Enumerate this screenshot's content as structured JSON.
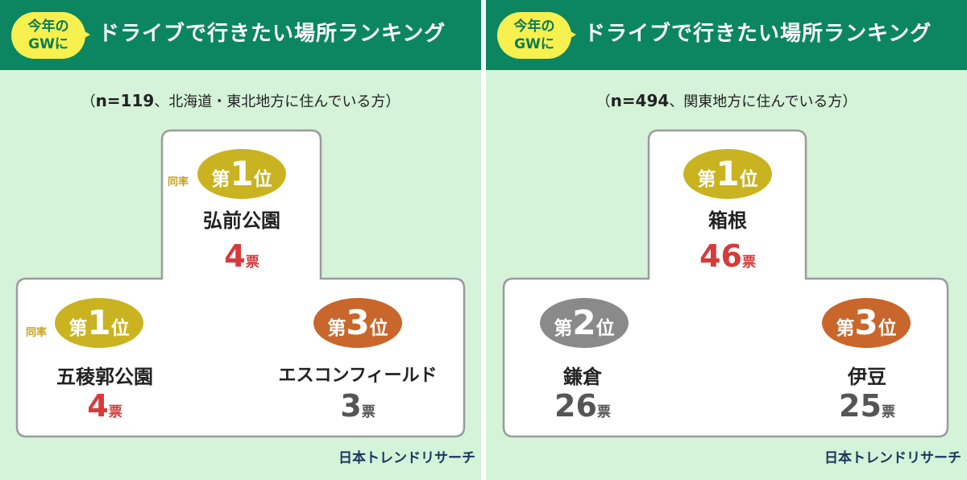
{
  "colors": {
    "header": "#0b8660",
    "background": "#d4f3d8",
    "bubble": "#f7f04e",
    "gold": "#c9b320",
    "silver": "#8a8a8a",
    "bronze": "#c8662b",
    "vote_highlight": "#d63b3b"
  },
  "panels": [
    {
      "bubble_line1": "今年の",
      "bubble_line2": "GWに",
      "title": "ドライブで行きたい場所ランキング",
      "note_open": "（",
      "note_n": "n=119",
      "note_rest": "、北海道・東北地方に住んでいる方）",
      "first_top": {
        "tie": "同率",
        "rank_pre": "第",
        "rank_num": "1",
        "rank_post": "位",
        "place": "弘前公園",
        "votes": "4",
        "unit": "票"
      },
      "left": {
        "tie": "同率",
        "rank_pre": "第",
        "rank_num": "1",
        "rank_post": "位",
        "place": "五稜郭公園",
        "votes": "4",
        "unit": "票"
      },
      "right": {
        "rank_pre": "第",
        "rank_num": "3",
        "rank_post": "位",
        "place": "エスコンフィールド",
        "votes": "3",
        "unit": "票"
      },
      "credit": "日本トレンドリサーチ"
    },
    {
      "bubble_line1": "今年の",
      "bubble_line2": "GWに",
      "title": "ドライブで行きたい場所ランキング",
      "note_open": "（",
      "note_n": "n=494",
      "note_rest": "、関東地方に住んでいる方）",
      "first_top": {
        "rank_pre": "第",
        "rank_num": "1",
        "rank_post": "位",
        "place": "箱根",
        "votes": "46",
        "unit": "票"
      },
      "left": {
        "rank_pre": "第",
        "rank_num": "2",
        "rank_post": "位",
        "place": "鎌倉",
        "votes": "26",
        "unit": "票"
      },
      "right": {
        "rank_pre": "第",
        "rank_num": "3",
        "rank_post": "位",
        "place": "伊豆",
        "votes": "25",
        "unit": "票"
      },
      "credit": "日本トレンドリサーチ"
    }
  ]
}
